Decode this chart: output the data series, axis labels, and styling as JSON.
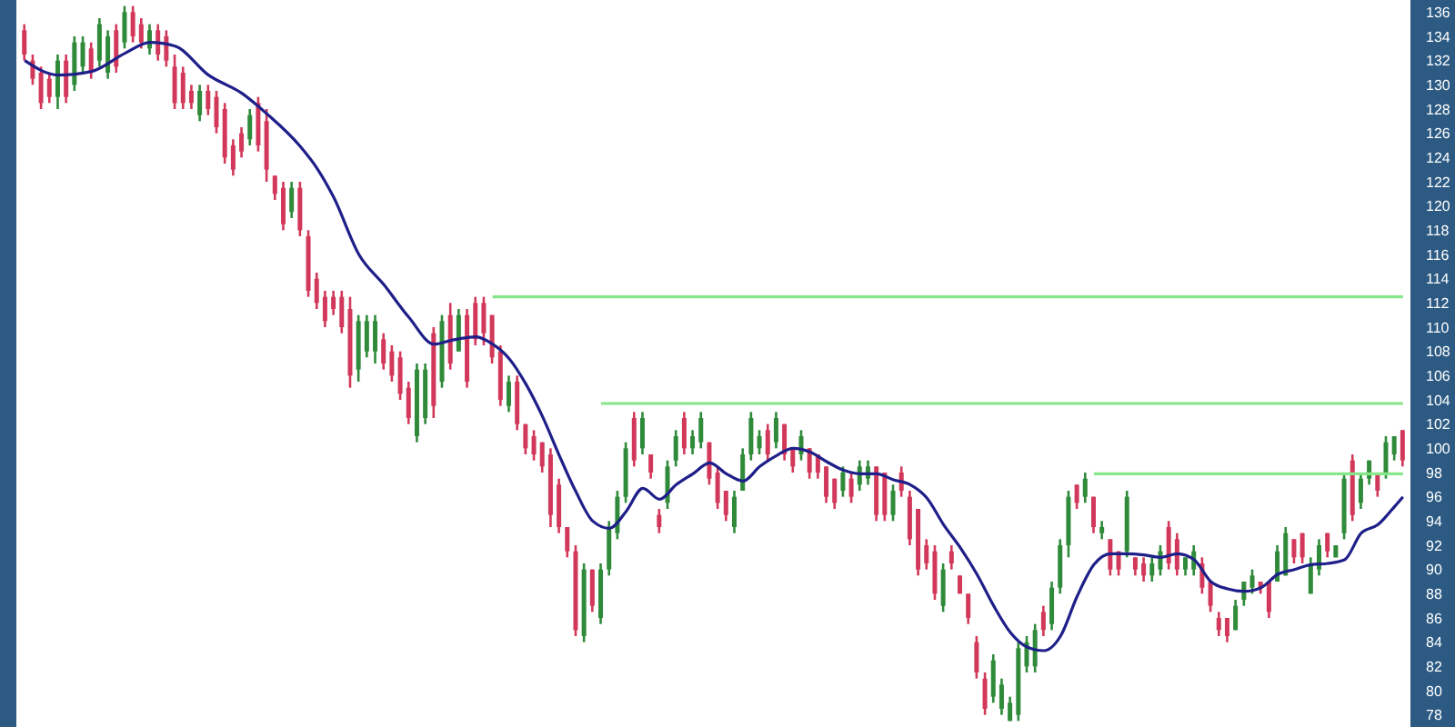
{
  "chart_data": {
    "type": "candlestick",
    "categories": [
      null,
      null,
      null,
      null,
      null,
      null,
      null,
      null,
      null,
      null,
      null,
      null,
      null,
      null,
      null,
      null,
      null,
      null,
      null,
      null,
      null,
      null,
      null,
      null,
      null,
      null,
      null,
      null,
      null,
      null,
      null,
      null,
      null,
      null,
      null,
      null,
      null,
      null,
      null,
      null,
      null,
      null,
      null,
      null,
      null,
      null,
      null,
      null,
      null,
      null,
      null,
      null,
      null,
      null,
      null,
      null,
      null,
      null,
      null,
      null,
      null,
      null,
      null,
      null,
      null,
      null,
      null,
      null,
      null,
      null,
      null,
      null,
      null,
      null,
      null,
      null,
      null,
      null,
      null,
      null,
      null,
      null,
      null,
      null,
      null,
      null,
      null,
      null,
      null,
      null,
      null,
      null,
      null,
      null,
      null,
      null,
      null,
      null,
      null,
      null,
      null,
      null,
      null,
      null,
      null,
      null,
      null,
      null,
      null,
      null,
      null,
      null,
      null,
      null,
      null,
      null,
      null,
      null,
      null,
      null,
      null,
      null,
      null,
      null,
      null,
      null,
      null,
      null,
      null,
      null,
      null,
      null,
      null,
      null,
      null,
      null,
      null,
      null,
      null,
      null,
      null,
      null,
      null,
      null,
      null,
      null,
      null,
      null,
      null,
      null,
      null,
      null,
      null,
      null,
      null,
      null,
      null,
      null,
      null,
      null,
      null,
      null,
      null,
      null,
      null,
      null
    ],
    "ohlc": [
      [
        134.5,
        135,
        132,
        132.5
      ],
      [
        132,
        132.5,
        130,
        130.5
      ],
      [
        131,
        131.5,
        128,
        128.5
      ],
      [
        130.5,
        131,
        128.5,
        129
      ],
      [
        129,
        132.5,
        128,
        132
      ],
      [
        132,
        132.5,
        128.5,
        129
      ],
      [
        130,
        134,
        129.5,
        133.5
      ],
      [
        131.5,
        134,
        131,
        133.5
      ],
      [
        133,
        133.5,
        130.5,
        131
      ],
      [
        132,
        135.5,
        131.5,
        135
      ],
      [
        131,
        134.5,
        130.5,
        134
      ],
      [
        134.5,
        135,
        131,
        131.5
      ],
      [
        133.5,
        136.5,
        133,
        136
      ],
      [
        136,
        136.5,
        133.5,
        134
      ],
      [
        135,
        135.5,
        133,
        133.5
      ],
      [
        133,
        135,
        132.5,
        134.5
      ],
      [
        134.5,
        135,
        132,
        132.5
      ],
      [
        134,
        134.5,
        131.5,
        132
      ],
      [
        131.5,
        132.5,
        128,
        128.5
      ],
      [
        131,
        131.5,
        128,
        128.5
      ],
      [
        129.5,
        130,
        128,
        128.5
      ],
      [
        127.5,
        130,
        127,
        129.5
      ],
      [
        129.5,
        130,
        127.5,
        128
      ],
      [
        129,
        129.5,
        126,
        126.5
      ],
      [
        128,
        128.5,
        123.5,
        124
      ],
      [
        125,
        125.5,
        122.5,
        123
      ],
      [
        126,
        126.5,
        124,
        124.5
      ],
      [
        125.5,
        128,
        125,
        127.5
      ],
      [
        128.5,
        129,
        124.5,
        125
      ],
      [
        127,
        128,
        122,
        123
      ],
      [
        122.5,
        122.5,
        120.5,
        121
      ],
      [
        121.5,
        122,
        118,
        118.5
      ],
      [
        119.5,
        122,
        119,
        121.5
      ],
      [
        121.5,
        122,
        117.5,
        118
      ],
      [
        117.5,
        118,
        112.5,
        113
      ],
      [
        114,
        114.5,
        111.5,
        112
      ],
      [
        112.5,
        113,
        110,
        110.5
      ],
      [
        112.5,
        113,
        111,
        111.5
      ],
      [
        112.5,
        113,
        109.5,
        110
      ],
      [
        111.5,
        112.5,
        105,
        106
      ],
      [
        106.5,
        111,
        105.5,
        110.5
      ],
      [
        108,
        111,
        107.5,
        110.5
      ],
      [
        108,
        111,
        107,
        110.5
      ],
      [
        109,
        109.5,
        106.5,
        107
      ],
      [
        108,
        108.5,
        105.5,
        106
      ],
      [
        107.5,
        108,
        104,
        104.5
      ],
      [
        105,
        105.5,
        102,
        102.5
      ],
      [
        101,
        107,
        100.5,
        106.5
      ],
      [
        102.5,
        107,
        102,
        106.5
      ],
      [
        109.5,
        110,
        102.5,
        103.5
      ],
      [
        105.5,
        111,
        105,
        110.5
      ],
      [
        111,
        112,
        106.5,
        107
      ],
      [
        108,
        111.5,
        108,
        111
      ],
      [
        111,
        111.5,
        105,
        105.5
      ],
      [
        112,
        112.5,
        108.5,
        109
      ],
      [
        112,
        112.5,
        108.5,
        109.5
      ],
      [
        111,
        111,
        107,
        107.5
      ],
      [
        108,
        108.5,
        103.5,
        104
      ],
      [
        103.5,
        106,
        103,
        105.5
      ],
      [
        105.5,
        106,
        101.5,
        102
      ],
      [
        102,
        102,
        99.5,
        100
      ],
      [
        101,
        101.5,
        99,
        99.5
      ],
      [
        100.5,
        100.5,
        98,
        98.5
      ],
      [
        99.5,
        100,
        93.5,
        94.5
      ],
      [
        97,
        97.5,
        93,
        93.5
      ],
      [
        93.5,
        93.5,
        91,
        91.5
      ],
      [
        91.5,
        92,
        84.5,
        85
      ],
      [
        84.5,
        90.5,
        84,
        90
      ],
      [
        90,
        90,
        86.5,
        87
      ],
      [
        86,
        90.5,
        85.5,
        90
      ],
      [
        90,
        94,
        89.5,
        93.5
      ],
      [
        93,
        96.5,
        92.5,
        96
      ],
      [
        96,
        100.5,
        95.5,
        100
      ],
      [
        102.5,
        103,
        98.5,
        99
      ],
      [
        100,
        103,
        99.5,
        102.5
      ],
      [
        99.5,
        99.5,
        97.5,
        98
      ],
      [
        94.5,
        95,
        93,
        93.5
      ],
      [
        95.5,
        99,
        95,
        98.5
      ],
      [
        99,
        101.5,
        98.5,
        101
      ],
      [
        102.5,
        103,
        99.5,
        100
      ],
      [
        100,
        101.5,
        99.5,
        101
      ],
      [
        100.5,
        103,
        100,
        102.5
      ],
      [
        100.5,
        100.5,
        97,
        97.5
      ],
      [
        98,
        98.5,
        95,
        95.5
      ],
      [
        96.5,
        96.5,
        94,
        94.5
      ],
      [
        93.5,
        96.5,
        93,
        96
      ],
      [
        96.5,
        100,
        96.5,
        99.5
      ],
      [
        99.5,
        103,
        99,
        102.5
      ],
      [
        100,
        101.5,
        99.5,
        101
      ],
      [
        101.5,
        102,
        99,
        99.5
      ],
      [
        100.5,
        103,
        100,
        102.5
      ],
      [
        102,
        102,
        99,
        99.5
      ],
      [
        100,
        100,
        98,
        98.5
      ],
      [
        99.5,
        101.5,
        99,
        101
      ],
      [
        100,
        100,
        97.5,
        98
      ],
      [
        99.5,
        99.5,
        97.5,
        98
      ],
      [
        98.5,
        98.5,
        95.5,
        96
      ],
      [
        97.5,
        97.5,
        95,
        95.5
      ],
      [
        96.5,
        98.5,
        96,
        98
      ],
      [
        97.5,
        98,
        95.5,
        96
      ],
      [
        97,
        99,
        96.5,
        98.5
      ],
      [
        97.5,
        99,
        97,
        98.5
      ],
      [
        98.5,
        98.5,
        94,
        94.5
      ],
      [
        98,
        98,
        94,
        94.5
      ],
      [
        94.5,
        97,
        94,
        96.5
      ],
      [
        98,
        98.5,
        96,
        96.5
      ],
      [
        96,
        96.5,
        92,
        92.5
      ],
      [
        95,
        95,
        89.5,
        90
      ],
      [
        92,
        92.5,
        90,
        90.5
      ],
      [
        91.5,
        92,
        87.5,
        88
      ],
      [
        87,
        90.5,
        86.5,
        90
      ],
      [
        91.5,
        92,
        90,
        90.5
      ],
      [
        89.5,
        89.5,
        88,
        88
      ],
      [
        88,
        88,
        85.5,
        86
      ],
      [
        84,
        84.5,
        81,
        81.5
      ],
      [
        81,
        81.5,
        78,
        78.5
      ],
      [
        79.5,
        83,
        79,
        82.5
      ],
      [
        78.5,
        81,
        78,
        80.5
      ],
      [
        77.5,
        79.5,
        77.5,
        79
      ],
      [
        78,
        84,
        77.5,
        83.5
      ],
      [
        82,
        84.5,
        81.5,
        84
      ],
      [
        82,
        85.5,
        81.5,
        85
      ],
      [
        86.5,
        87,
        84.5,
        85
      ],
      [
        85.5,
        89,
        85,
        88.5
      ],
      [
        88.5,
        92.5,
        88,
        92
      ],
      [
        92,
        96.5,
        91,
        96
      ],
      [
        97,
        97,
        95,
        95.5
      ],
      [
        96,
        98,
        95.5,
        97.5
      ],
      [
        96,
        96,
        93,
        93.5
      ],
      [
        93,
        94,
        92.5,
        93.5
      ],
      [
        92.5,
        92.5,
        89.5,
        90
      ],
      [
        91.5,
        91.5,
        89.5,
        90
      ],
      [
        91.5,
        96.5,
        91,
        96
      ],
      [
        91,
        91,
        89.5,
        90
      ],
      [
        90.5,
        91,
        89,
        89.5
      ],
      [
        89.5,
        91,
        89,
        90.5
      ],
      [
        90,
        92,
        89.5,
        91.5
      ],
      [
        93.5,
        94,
        90,
        90.5
      ],
      [
        92.5,
        93,
        89.5,
        90
      ],
      [
        90,
        91,
        89.5,
        91
      ],
      [
        90,
        92,
        89.5,
        91.5
      ],
      [
        90.5,
        91,
        88,
        88.5
      ],
      [
        89,
        89,
        86.5,
        87
      ],
      [
        86,
        86.5,
        84.5,
        85
      ],
      [
        86,
        86,
        84,
        84.5
      ],
      [
        85,
        87.5,
        85,
        87
      ],
      [
        87.5,
        89,
        87,
        89
      ],
      [
        88.5,
        90,
        88,
        89.5
      ],
      [
        89,
        89,
        88,
        88.5
      ],
      [
        89,
        89,
        86,
        86.5
      ],
      [
        89,
        92,
        89,
        91.5
      ],
      [
        89.5,
        93.5,
        89.5,
        93
      ],
      [
        92.5,
        92.5,
        90.5,
        91
      ],
      [
        93,
        93,
        90.5,
        91
      ],
      [
        88,
        91,
        88,
        90.5
      ],
      [
        90,
        92.5,
        89.5,
        92
      ],
      [
        93,
        93,
        91,
        91.5
      ],
      [
        91,
        92,
        91,
        92
      ],
      [
        93,
        98,
        92.5,
        97.5
      ],
      [
        99,
        99.5,
        94,
        94.5
      ],
      [
        95.5,
        98,
        95,
        97.5
      ],
      [
        97.5,
        99,
        97,
        99
      ],
      [
        98,
        98,
        96,
        96.5
      ],
      [
        98,
        101,
        97.5,
        100.5
      ],
      [
        99.5,
        101,
        99,
        101
      ],
      [
        101.5,
        101.5,
        98.5,
        99
      ]
    ],
    "colors": [
      "#d2385a",
      "#d2385a",
      "#d2385a",
      "#d2385a",
      "#2f8a3a",
      "#d2385a",
      "#2f8a3a",
      "#2f8a3a",
      "#d2385a",
      "#2f8a3a",
      "#2f8a3a",
      "#d2385a",
      "#2f8a3a",
      "#d2385a",
      "#d2385a",
      "#2f8a3a",
      "#d2385a",
      "#d2385a",
      "#d2385a",
      "#d2385a",
      "#d2385a",
      "#2f8a3a",
      "#d2385a",
      "#d2385a",
      "#d2385a",
      "#d2385a",
      "#d2385a",
      "#2f8a3a",
      "#d2385a",
      "#d2385a",
      "#d2385a",
      "#d2385a",
      "#2f8a3a",
      "#d2385a",
      "#d2385a",
      "#d2385a",
      "#d2385a",
      "#d2385a",
      "#d2385a",
      "#d2385a",
      "#2f8a3a",
      "#2f8a3a",
      "#2f8a3a",
      "#d2385a",
      "#d2385a",
      "#d2385a",
      "#d2385a",
      "#2f8a3a",
      "#2f8a3a",
      "#d2385a",
      "#2f8a3a",
      "#d2385a",
      "#2f8a3a",
      "#d2385a",
      "#d2385a",
      "#d2385a",
      "#d2385a",
      "#d2385a",
      "#2f8a3a",
      "#d2385a",
      "#d2385a",
      "#d2385a",
      "#d2385a",
      "#d2385a",
      "#d2385a",
      "#d2385a",
      "#d2385a",
      "#2f8a3a",
      "#d2385a",
      "#2f8a3a",
      "#2f8a3a",
      "#2f8a3a",
      "#2f8a3a",
      "#d2385a",
      "#2f8a3a",
      "#d2385a",
      "#d2385a",
      "#2f8a3a",
      "#2f8a3a",
      "#d2385a",
      "#2f8a3a",
      "#2f8a3a",
      "#d2385a",
      "#d2385a",
      "#d2385a",
      "#2f8a3a",
      "#2f8a3a",
      "#2f8a3a",
      "#2f8a3a",
      "#d2385a",
      "#2f8a3a",
      "#d2385a",
      "#d2385a",
      "#2f8a3a",
      "#d2385a",
      "#d2385a",
      "#d2385a",
      "#d2385a",
      "#2f8a3a",
      "#d2385a",
      "#2f8a3a",
      "#2f8a3a",
      "#d2385a",
      "#d2385a",
      "#2f8a3a",
      "#d2385a",
      "#d2385a",
      "#d2385a",
      "#d2385a",
      "#d2385a",
      "#2f8a3a",
      "#d2385a",
      "#d2385a",
      "#d2385a",
      "#d2385a",
      "#d2385a",
      "#2f8a3a",
      "#2f8a3a",
      "#2f8a3a",
      "#2f8a3a",
      "#2f8a3a",
      "#2f8a3a",
      "#d2385a",
      "#2f8a3a",
      "#2f8a3a",
      "#2f8a3a",
      "#d2385a",
      "#2f8a3a",
      "#d2385a",
      "#2f8a3a",
      "#d2385a",
      "#d2385a",
      "#2f8a3a",
      "#d2385a",
      "#d2385a",
      "#2f8a3a",
      "#2f8a3a",
      "#d2385a",
      "#d2385a",
      "#2f8a3a",
      "#2f8a3a",
      "#d2385a",
      "#d2385a",
      "#d2385a",
      "#d2385a",
      "#2f8a3a",
      "#2f8a3a",
      "#2f8a3a",
      "#d2385a",
      "#d2385a",
      "#2f8a3a",
      "#2f8a3a",
      "#d2385a",
      "#d2385a",
      "#2f8a3a",
      "#2f8a3a",
      "#d2385a",
      "#2f8a3a",
      "#2f8a3a",
      "#d2385a",
      "#2f8a3a",
      "#2f8a3a",
      "#d2385a",
      "#2f8a3a",
      "#2f8a3a",
      "#d2385a"
    ],
    "series": [
      {
        "type": "line",
        "color": "#1f1f8a",
        "values": [
          132,
          null,
          null,
          null,
          130.8,
          null,
          null,
          null,
          131.1,
          null,
          null,
          null,
          132.6,
          null,
          null,
          133.5,
          null,
          null,
          133.2,
          null,
          null,
          null,
          130.8,
          null,
          null,
          null,
          129.3,
          null,
          null,
          127.6,
          null,
          null,
          null,
          124.9,
          null,
          123.1,
          null,
          120.7,
          null,
          null,
          116,
          null,
          null,
          113.5,
          null,
          null,
          110.8,
          null,
          null,
          108.6,
          null,
          108.9,
          null,
          null,
          109.2,
          null,
          108.6,
          null,
          107.4,
          null,
          105.3,
          null,
          102.6,
          null,
          99.4,
          null,
          96.4,
          null,
          94,
          null,
          93.4,
          null,
          94.8,
          null,
          96.7,
          null,
          95.8,
          null,
          97,
          null,
          97.9,
          null,
          98.8,
          null,
          97.9,
          null,
          97.3,
          null,
          98.5,
          null,
          99.4,
          null,
          100,
          null,
          99.7,
          null,
          98.9,
          null,
          98.2,
          null,
          97.9,
          null,
          97.9,
          null,
          97.4,
          null,
          97,
          null,
          95.9,
          null,
          93.7,
          null,
          91.8,
          null,
          89.6,
          null,
          87,
          null,
          84.8,
          null,
          83.6,
          null,
          83.3,
          null,
          84.5,
          null,
          87.8,
          null,
          90.4,
          null,
          91.3,
          null,
          91.3,
          null,
          91.2,
          null,
          91,
          null,
          91.3,
          null,
          90.8,
          null,
          89,
          null,
          88.4,
          null,
          88.2,
          null,
          88.5,
          null,
          89.6,
          null,
          90,
          null,
          90.4,
          null,
          90.5,
          null,
          90.8,
          null,
          93,
          null,
          93.7,
          null,
          95.2,
          96
        ]
      },
      {
        "type": "line",
        "color": "#86e68a",
        "values": [
          null,
          null,
          null,
          null,
          null,
          null,
          null,
          null,
          null,
          null,
          null,
          null,
          null,
          null,
          null,
          null,
          null,
          null,
          null,
          null,
          null,
          null,
          null,
          null,
          null,
          null,
          null,
          null,
          null,
          null,
          null,
          null,
          null,
          null,
          null,
          null,
          null,
          null,
          null,
          null,
          null,
          null,
          null,
          null,
          null,
          null,
          null,
          null,
          null,
          null,
          null,
          null,
          null,
          null,
          null,
          null,
          112.5,
          null,
          null,
          null,
          null,
          null,
          null,
          null,
          null,
          null,
          null,
          null,
          null,
          null,
          null,
          null,
          null,
          null,
          null,
          null,
          null,
          null,
          null,
          null,
          null,
          null,
          null,
          null,
          null,
          null,
          null,
          null,
          null,
          null,
          null,
          null,
          null,
          null,
          null,
          null,
          null,
          null,
          null,
          null,
          null,
          null,
          null,
          null,
          null,
          null,
          null,
          null,
          null,
          null,
          null,
          null,
          null,
          null,
          null,
          null,
          null,
          null,
          null,
          null,
          null,
          null,
          null,
          null,
          null,
          null,
          null,
          null,
          null,
          null,
          null,
          null,
          null,
          null,
          null,
          null,
          null,
          null,
          null,
          null,
          null,
          null,
          null,
          null,
          null,
          null,
          null,
          null,
          null,
          null,
          null,
          null,
          null,
          null,
          null,
          null,
          null,
          null,
          null,
          null,
          null,
          null,
          null,
          null,
          null,
          112.5
        ]
      },
      {
        "type": "line",
        "color": "#86e68a",
        "values": [
          null,
          null,
          null,
          null,
          null,
          null,
          null,
          null,
          null,
          null,
          null,
          null,
          null,
          null,
          null,
          null,
          null,
          null,
          null,
          null,
          null,
          null,
          null,
          null,
          null,
          null,
          null,
          null,
          null,
          null,
          null,
          null,
          null,
          null,
          null,
          null,
          null,
          null,
          null,
          null,
          null,
          null,
          null,
          null,
          null,
          null,
          null,
          null,
          null,
          null,
          null,
          null,
          null,
          null,
          null,
          null,
          null,
          null,
          null,
          null,
          null,
          null,
          null,
          null,
          null,
          null,
          null,
          null,
          null,
          103.7,
          null,
          null,
          null,
          null,
          null,
          null,
          null,
          null,
          null,
          null,
          null,
          null,
          null,
          null,
          null,
          null,
          null,
          null,
          null,
          null,
          null,
          null,
          null,
          null,
          null,
          null,
          null,
          null,
          null,
          null,
          null,
          null,
          null,
          null,
          null,
          null,
          null,
          null,
          null,
          null,
          null,
          null,
          null,
          null,
          null,
          null,
          null,
          null,
          null,
          null,
          null,
          null,
          null,
          null,
          null,
          null,
          null,
          null,
          null,
          null,
          null,
          null,
          null,
          null,
          null,
          null,
          null,
          null,
          null,
          null,
          null,
          null,
          null,
          null,
          null,
          null,
          null,
          null,
          null,
          null,
          null,
          null,
          null,
          null,
          null,
          null,
          null,
          null,
          null,
          null,
          null,
          null,
          null,
          null,
          null,
          103.7
        ]
      },
      {
        "type": "line",
        "color": "#86e68a",
        "values": [
          null,
          null,
          null,
          null,
          null,
          null,
          null,
          null,
          null,
          null,
          null,
          null,
          null,
          null,
          null,
          null,
          null,
          null,
          null,
          null,
          null,
          null,
          null,
          null,
          null,
          null,
          null,
          null,
          null,
          null,
          null,
          null,
          null,
          null,
          null,
          null,
          null,
          null,
          null,
          null,
          null,
          null,
          null,
          null,
          null,
          null,
          null,
          null,
          null,
          null,
          null,
          null,
          null,
          null,
          null,
          null,
          null,
          null,
          null,
          null,
          null,
          null,
          null,
          null,
          null,
          null,
          null,
          null,
          null,
          null,
          null,
          null,
          null,
          null,
          null,
          null,
          null,
          null,
          null,
          null,
          null,
          null,
          null,
          null,
          null,
          null,
          null,
          null,
          null,
          null,
          null,
          null,
          null,
          null,
          null,
          null,
          null,
          null,
          null,
          null,
          null,
          null,
          null,
          null,
          null,
          null,
          null,
          null,
          null,
          null,
          null,
          null,
          null,
          null,
          null,
          null,
          null,
          null,
          null,
          null,
          null,
          null,
          null,
          null,
          null,
          null,
          null,
          null,
          97.9,
          null,
          null,
          null,
          null,
          null,
          null,
          null,
          null,
          null,
          null,
          null,
          null,
          null,
          null,
          null,
          null,
          null,
          null,
          null,
          null,
          null,
          null,
          null,
          null,
          null,
          null,
          null,
          null,
          null,
          null,
          null,
          null,
          null,
          null,
          null,
          null,
          97.9
        ]
      }
    ],
    "ylim": [
      77,
      137
    ],
    "yticks": [
      78,
      80,
      82,
      84,
      86,
      88,
      90,
      92,
      94,
      96,
      98,
      100,
      102,
      104,
      106,
      108,
      110,
      112,
      114,
      116,
      118,
      120,
      122,
      124,
      126,
      128,
      130,
      132,
      134,
      136
    ],
    "tick_labels": "y",
    "marker": "none"
  }
}
